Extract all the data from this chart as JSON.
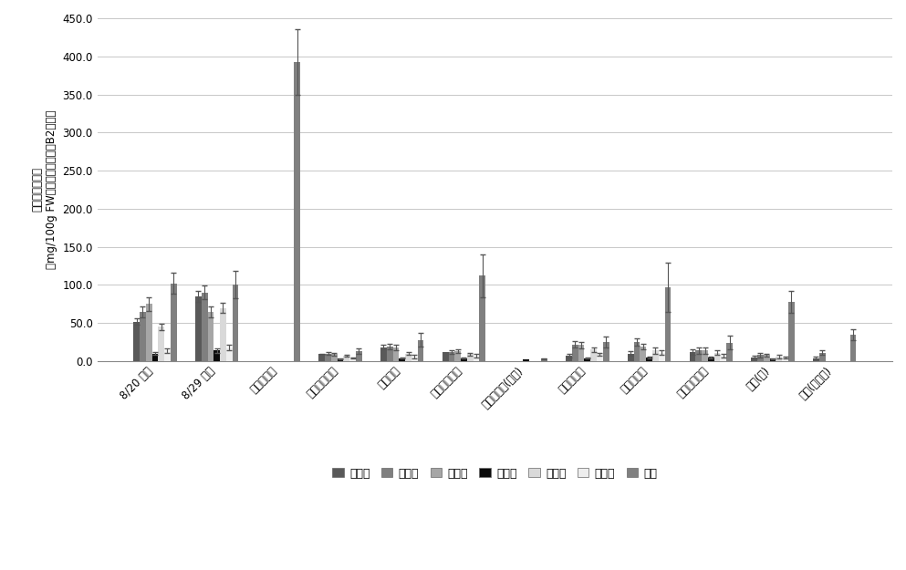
{
  "categories": [
    "8/20 高坂",
    "8/29 高坂",
    "ジェームズ",
    "タイデマンズ",
    "フラワー",
    "エグレモント",
    "メイポール(参考)",
    "ボスクープ",
    "ブラムリー",
    "ブレンハイム",
    "ふじ(普)",
    "ふじ(着色系)"
  ],
  "series_names": [
    "２量体",
    "３量体",
    "４量体",
    "５量体",
    "６量体",
    "７量体",
    "総量"
  ],
  "series_colors": [
    "#595959",
    "#7f7f7f",
    "#a6a6a6",
    "#0a0a0a",
    "#d9d9d9",
    "#eeeeee",
    "#808080"
  ],
  "values": [
    [
      52,
      85,
      0,
      9,
      18,
      12,
      0,
      7,
      10,
      12,
      5,
      4
    ],
    [
      65,
      90,
      0,
      10,
      19,
      12,
      0,
      22,
      25,
      14,
      8,
      11
    ],
    [
      75,
      65,
      0,
      9,
      18,
      13,
      0,
      21,
      19,
      14,
      8,
      0
    ],
    [
      10,
      14,
      0,
      3,
      4,
      4,
      2,
      4,
      5,
      5,
      3,
      0
    ],
    [
      45,
      70,
      0,
      7,
      10,
      9,
      0,
      15,
      14,
      11,
      6,
      0
    ],
    [
      14,
      18,
      0,
      4,
      6,
      7,
      0,
      9,
      11,
      7,
      5,
      0
    ],
    [
      102,
      101,
      393,
      13,
      28,
      112,
      3,
      25,
      97,
      24,
      78,
      35
    ]
  ],
  "errors": [
    [
      4,
      7,
      0,
      1,
      3,
      0,
      0,
      2,
      3,
      4,
      2,
      2
    ],
    [
      7,
      9,
      0,
      2,
      4,
      2,
      0,
      4,
      5,
      4,
      3,
      3
    ],
    [
      9,
      7,
      0,
      2,
      4,
      2,
      0,
      4,
      4,
      4,
      2,
      0
    ],
    [
      2,
      3,
      0,
      1,
      1,
      1,
      0,
      1,
      1,
      1,
      1,
      0
    ],
    [
      4,
      7,
      0,
      1,
      2,
      2,
      0,
      3,
      4,
      3,
      2,
      0
    ],
    [
      3,
      4,
      0,
      1,
      2,
      2,
      0,
      2,
      3,
      2,
      1,
      0
    ],
    [
      14,
      18,
      43,
      4,
      9,
      28,
      1,
      7,
      32,
      9,
      14,
      7
    ]
  ],
  "ylim": [
    0,
    450
  ],
  "yticks": [
    0.0,
    50.0,
    100.0,
    150.0,
    200.0,
    250.0,
    300.0,
    350.0,
    400.0,
    450.0
  ],
  "ylabel_line1": "プロシアニジン",
  "ylabel_line2": "（mg/100g FW，プロシアニジンB2当量）",
  "background_color": "#ffffff",
  "grid_color": "#c8c8c8",
  "bar_width": 0.1,
  "error_color": "#555555",
  "spine_color": "#888888",
  "tick_fontsize": 8.5,
  "legend_fontsize": 9,
  "ylabel_fontsize": 8.5
}
